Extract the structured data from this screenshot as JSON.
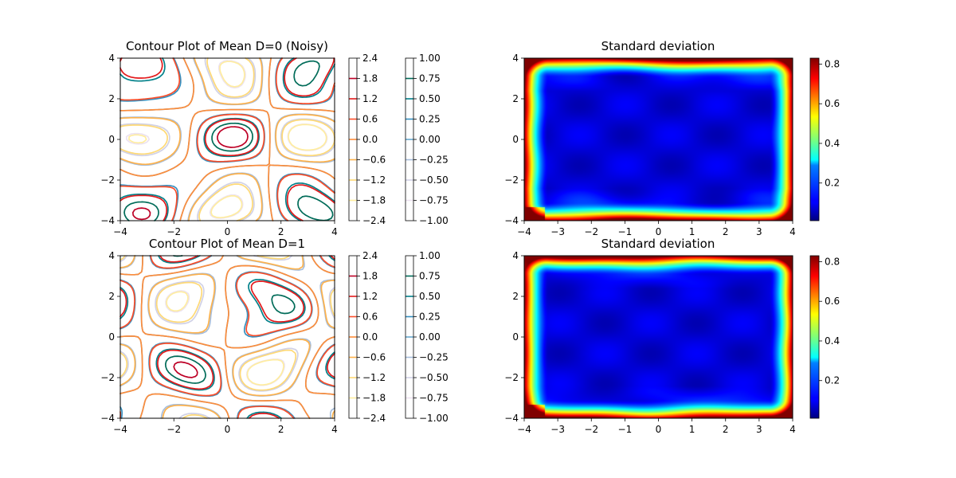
{
  "chart_data": [
    {
      "type": "contour",
      "title": "Contour Plot of Mean D=0 (Noisy)",
      "xlim": [
        -4,
        4
      ],
      "ylim": [
        -4,
        4
      ],
      "xticks": [
        -4,
        -2,
        0,
        2,
        4
      ],
      "yticks": [
        -4,
        -2,
        0,
        2,
        4
      ],
      "colorbars": [
        {
          "cmap": "YlOrRd",
          "ticks": [
            "2.4",
            "1.8",
            "1.2",
            "0.6",
            "0.0",
            "−0.6",
            "−1.2",
            "−1.8",
            "−2.4"
          ]
        },
        {
          "cmap": "PuBuGn",
          "ticks": [
            "1.00",
            "0.75",
            "0.50",
            "0.25",
            "0.00",
            "−0.25",
            "−0.50",
            "−0.75",
            "−1.00"
          ]
        }
      ]
    },
    {
      "type": "heatmap",
      "title": "Standard deviation",
      "xlim": [
        -4,
        4
      ],
      "ylim": [
        -4,
        4
      ],
      "xticks": [
        -4,
        -3,
        -2,
        -1,
        0,
        1,
        2,
        3,
        4
      ],
      "yticks": [
        -4,
        -2,
        0,
        2,
        4
      ],
      "cmap": "jet",
      "colorbar_ticks": [
        "0.8",
        "0.6",
        "0.4",
        "0.2"
      ],
      "value_range": [
        0.01,
        0.83
      ]
    },
    {
      "type": "contour",
      "title": "Contour Plot of Mean D=1",
      "xlim": [
        -4,
        4
      ],
      "ylim": [
        -4,
        4
      ],
      "xticks": [
        -4,
        -2,
        0,
        2,
        4
      ],
      "yticks": [
        -4,
        -2,
        0,
        2,
        4
      ],
      "colorbars": [
        {
          "cmap": "YlOrRd",
          "ticks": [
            "2.4",
            "1.8",
            "1.2",
            "0.6",
            "0.0",
            "−0.6",
            "−1.2",
            "−1.8",
            "−2.4"
          ]
        },
        {
          "cmap": "PuBuGn",
          "ticks": [
            "1.00",
            "0.75",
            "0.50",
            "0.25",
            "0.00",
            "−0.25",
            "−0.50",
            "−0.75",
            "−1.00"
          ]
        }
      ]
    },
    {
      "type": "heatmap",
      "title": "Standard deviation",
      "xlim": [
        -4,
        4
      ],
      "ylim": [
        -4,
        4
      ],
      "xticks": [
        -4,
        -3,
        -2,
        -1,
        0,
        1,
        2,
        3,
        4
      ],
      "yticks": [
        -4,
        -2,
        0,
        2,
        4
      ],
      "cmap": "jet",
      "colorbar_ticks": [
        "0.8",
        "0.6",
        "0.4",
        "0.2"
      ],
      "value_range": [
        0.01,
        0.83
      ]
    }
  ],
  "colors": {
    "ylorrd": [
      "#800026",
      "#bd0026",
      "#e31a1c",
      "#fc4e2a",
      "#fd8d3c",
      "#feb24c",
      "#fed976",
      "#ffeda0",
      "#ffffcc"
    ],
    "pubugn": [
      "#014636",
      "#016c59",
      "#02818a",
      "#3690c0",
      "#67a9cf",
      "#a6bddb",
      "#d0d1e6",
      "#ece2f0",
      "#fff7fb"
    ]
  }
}
